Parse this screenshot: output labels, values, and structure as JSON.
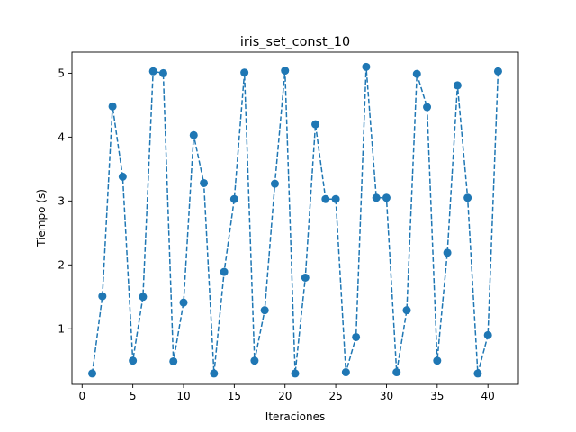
{
  "chart_data": {
    "type": "line",
    "title": "iris_set_const_10",
    "xlabel": "Iteraciones",
    "ylabel": "Tiempo (s)",
    "xlim": [
      -1,
      43
    ],
    "ylim": [
      0.13,
      5.33
    ],
    "xticks": [
      0,
      5,
      10,
      15,
      20,
      25,
      30,
      35,
      40
    ],
    "yticks": [
      1,
      2,
      3,
      4,
      5
    ],
    "grid": false,
    "color": "#1f77b4",
    "line_style": "dashed",
    "marker": "circle",
    "x": [
      1,
      2,
      3,
      4,
      5,
      6,
      7,
      8,
      9,
      10,
      11,
      12,
      13,
      14,
      15,
      16,
      17,
      18,
      19,
      20,
      21,
      22,
      23,
      24,
      25,
      26,
      27,
      28,
      29,
      30,
      31,
      32,
      33,
      34,
      35,
      36,
      37,
      38,
      39,
      40,
      41
    ],
    "y": [
      0.3,
      1.51,
      4.48,
      3.38,
      0.5,
      1.5,
      5.03,
      5.0,
      0.49,
      1.41,
      4.03,
      3.28,
      0.3,
      1.89,
      3.03,
      5.01,
      0.5,
      1.29,
      3.27,
      5.04,
      0.3,
      1.8,
      4.2,
      3.03,
      3.03,
      0.32,
      0.87,
      5.1,
      3.05,
      3.05,
      0.32,
      1.29,
      4.99,
      4.47,
      0.5,
      2.19,
      4.81,
      3.05,
      0.3,
      0.9,
      5.03
    ]
  }
}
